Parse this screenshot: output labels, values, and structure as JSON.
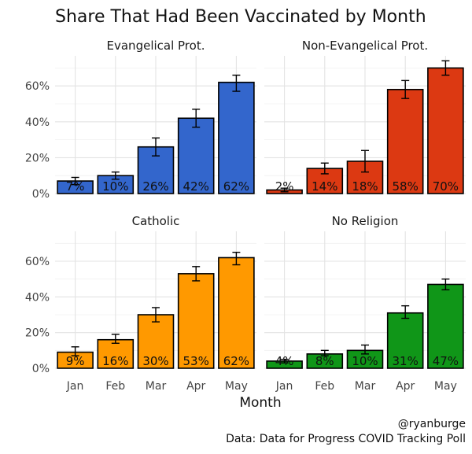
{
  "chart_data": {
    "type": "bar",
    "title": "Share That Had Been Vaccinated by Month",
    "xlabel": "Month",
    "ylabel": "",
    "ylim": [
      0,
      0.75
    ],
    "yticks": [
      0,
      0.2,
      0.4,
      0.6
    ],
    "ytick_labels": [
      "0%",
      "20%",
      "40%",
      "60%"
    ],
    "categories": [
      "Jan",
      "Feb",
      "Mar",
      "Apr",
      "May"
    ],
    "grid": true,
    "legend": "none",
    "error_bars": true,
    "panels": [
      {
        "name": "Evangelical Prot.",
        "color": "#3366cc",
        "values": [
          0.07,
          0.1,
          0.26,
          0.42,
          0.62
        ],
        "labels": [
          "7%",
          "10%",
          "26%",
          "42%",
          "62%"
        ],
        "error_low": [
          0.05,
          0.08,
          0.21,
          0.37,
          0.57
        ],
        "error_high": [
          0.09,
          0.12,
          0.31,
          0.47,
          0.66
        ]
      },
      {
        "name": "Non-Evangelical Prot.",
        "color": "#dc3912",
        "values": [
          0.02,
          0.14,
          0.18,
          0.58,
          0.7
        ],
        "labels": [
          "2%",
          "14%",
          "18%",
          "58%",
          "70%"
        ],
        "error_low": [
          0.01,
          0.11,
          0.12,
          0.53,
          0.66
        ],
        "error_high": [
          0.03,
          0.17,
          0.24,
          0.63,
          0.74
        ]
      },
      {
        "name": "Catholic",
        "color": "#ff9900",
        "values": [
          0.09,
          0.16,
          0.3,
          0.53,
          0.62
        ],
        "labels": [
          "9%",
          "16%",
          "30%",
          "53%",
          "62%"
        ],
        "error_low": [
          0.07,
          0.14,
          0.26,
          0.49,
          0.58
        ],
        "error_high": [
          0.12,
          0.19,
          0.34,
          0.57,
          0.65
        ]
      },
      {
        "name": "No Religion",
        "color": "#109618",
        "values": [
          0.04,
          0.08,
          0.1,
          0.31,
          0.47
        ],
        "labels": [
          "4%",
          "8%",
          "10%",
          "31%",
          "47%"
        ],
        "error_low": [
          0.03,
          0.07,
          0.08,
          0.28,
          0.44
        ],
        "error_high": [
          0.05,
          0.1,
          0.13,
          0.35,
          0.5
        ]
      }
    ]
  },
  "credits": {
    "handle": "@ryanburge",
    "source": "Data: Data for Progress COVID Tracking Poll"
  }
}
